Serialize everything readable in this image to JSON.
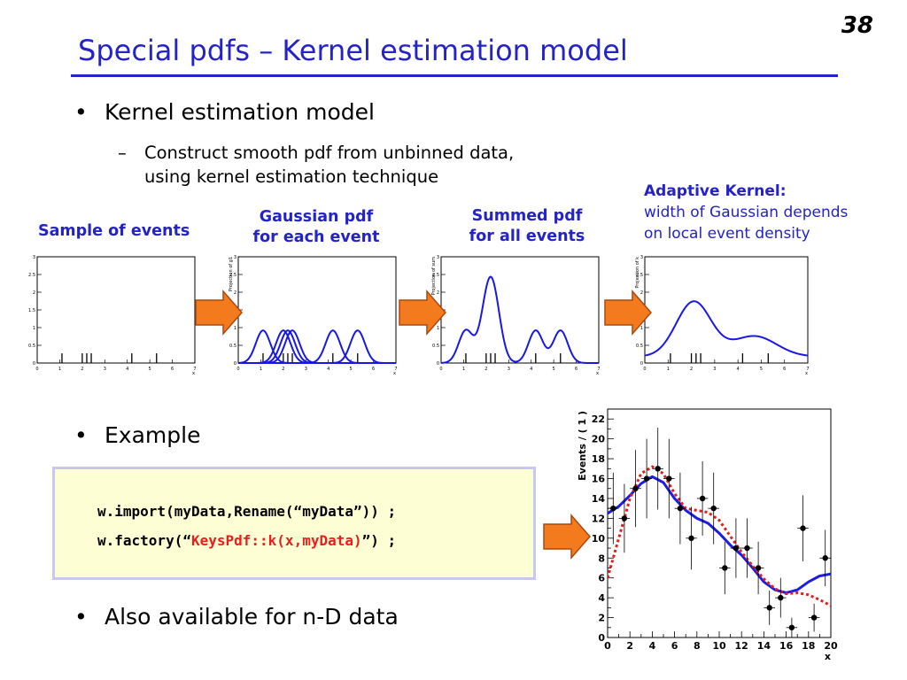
{
  "slide": {
    "page_number": "38",
    "title": "Special pdfs – Kernel estimation model"
  },
  "bullets": {
    "b1": "Kernel estimation model",
    "b1_sub_line1": "Construct smooth pdf from unbinned data,",
    "b1_sub_line2": "using kernel estimation technique",
    "b2": "Example",
    "b3": "Also available for n-D data",
    "bullet_glyph": "•",
    "dash_glyph": "–"
  },
  "panel_labels": {
    "sample": "Sample of events",
    "gaussian_line1": "Gaussian pdf",
    "gaussian_line2": "for each event",
    "summed_line1": "Summed pdf",
    "summed_line2": "for all events",
    "adaptive_heading": "Adaptive Kernel:",
    "adaptive_line1": "width of Gaussian depends",
    "adaptive_line2": "on local event density"
  },
  "mini_plots": {
    "y_ticks": [
      "0",
      "0.5",
      "1",
      "1.5",
      "2",
      "2.5",
      "3"
    ],
    "x_ticks": [
      "0",
      "1",
      "2",
      "3",
      "4",
      "5",
      "6",
      "7"
    ],
    "x_label": "x",
    "y_label_gaussian": "Projection of g1",
    "y_label_summed": "Projection of sum",
    "y_label_adaptive": "Projection of k",
    "events": [
      1.1,
      2.0,
      2.2,
      2.4,
      4.2,
      5.3
    ],
    "colors": {
      "curve": "#1818e6",
      "event_ticks": "#000000"
    }
  },
  "code": {
    "line1": "w.import(myData,Rename(“myData”)) ;",
    "line2_pre": "w.factory(“",
    "line2_red": "KeysPdf::k(x,myData)",
    "line2_post": "”) ;"
  },
  "chart_data": {
    "type": "scatter",
    "title": "",
    "xlabel": "x",
    "ylabel": "Events / ( 1 )",
    "xlim": [
      0,
      20
    ],
    "ylim": [
      0,
      23
    ],
    "x_ticks": [
      "0",
      "2",
      "4",
      "6",
      "8",
      "10",
      "12",
      "14",
      "16",
      "18",
      "20"
    ],
    "y_ticks": [
      "0",
      "2",
      "4",
      "6",
      "8",
      "10",
      "12",
      "14",
      "16",
      "18",
      "20",
      "22"
    ],
    "series": [
      {
        "points": [
          {
            "x": 0.5,
            "y": 13
          },
          {
            "x": 1.5,
            "y": 12
          },
          {
            "x": 2.5,
            "y": 15
          },
          {
            "x": 3.5,
            "y": 16
          },
          {
            "x": 4.5,
            "y": 17
          },
          {
            "x": 5.5,
            "y": 16
          },
          {
            "x": 6.5,
            "y": 13
          },
          {
            "x": 7.5,
            "y": 10
          },
          {
            "x": 8.5,
            "y": 14
          },
          {
            "x": 9.5,
            "y": 13
          },
          {
            "x": 10.5,
            "y": 7
          },
          {
            "x": 11.5,
            "y": 9
          },
          {
            "x": 12.5,
            "y": 9
          },
          {
            "x": 13.5,
            "y": 7
          },
          {
            "x": 14.5,
            "y": 3
          },
          {
            "x": 15.5,
            "y": 4
          },
          {
            "x": 16.5,
            "y": 1
          },
          {
            "x": 17.5,
            "y": 11
          },
          {
            "x": 18.5,
            "y": 2
          },
          {
            "x": 19.5,
            "y": 8
          }
        ]
      },
      {
        "style": "solid",
        "points": [
          {
            "x": 0,
            "y": 12.5
          },
          {
            "x": 1,
            "y": 13.2
          },
          {
            "x": 2,
            "y": 14.3
          },
          {
            "x": 3,
            "y": 15.5
          },
          {
            "x": 4,
            "y": 16.2
          },
          {
            "x": 5,
            "y": 15.6
          },
          {
            "x": 6,
            "y": 14.0
          },
          {
            "x": 7,
            "y": 12.8
          },
          {
            "x": 8,
            "y": 12.0
          },
          {
            "x": 9,
            "y": 11.5
          },
          {
            "x": 10,
            "y": 10.5
          },
          {
            "x": 11,
            "y": 9.3
          },
          {
            "x": 12,
            "y": 8.3
          },
          {
            "x": 13,
            "y": 7.0
          },
          {
            "x": 14,
            "y": 5.6
          },
          {
            "x": 15,
            "y": 4.8
          },
          {
            "x": 16,
            "y": 4.5
          },
          {
            "x": 17,
            "y": 4.8
          },
          {
            "x": 18,
            "y": 5.6
          },
          {
            "x": 19,
            "y": 6.2
          },
          {
            "x": 20,
            "y": 6.4
          }
        ]
      },
      {
        "style": "dotted",
        "points": [
          {
            "x": 0,
            "y": 6.0
          },
          {
            "x": 1,
            "y": 10.0
          },
          {
            "x": 2,
            "y": 14.0
          },
          {
            "x": 3,
            "y": 16.5
          },
          {
            "x": 4,
            "y": 17.2
          },
          {
            "x": 5,
            "y": 16.5
          },
          {
            "x": 6,
            "y": 14.5
          },
          {
            "x": 7,
            "y": 13.0
          },
          {
            "x": 8,
            "y": 12.8
          },
          {
            "x": 9,
            "y": 12.6
          },
          {
            "x": 10,
            "y": 11.8
          },
          {
            "x": 11,
            "y": 10.2
          },
          {
            "x": 12,
            "y": 8.6
          },
          {
            "x": 13,
            "y": 7.2
          },
          {
            "x": 14,
            "y": 5.9
          },
          {
            "x": 15,
            "y": 4.9
          },
          {
            "x": 16,
            "y": 4.4
          },
          {
            "x": 17,
            "y": 4.5
          },
          {
            "x": 18,
            "y": 4.3
          },
          {
            "x": 19,
            "y": 3.8
          },
          {
            "x": 20,
            "y": 3.2
          }
        ]
      }
    ],
    "colors": {
      "points": "#000000",
      "solid": "#1c1ce6",
      "dotted": "#e61c1c"
    }
  },
  "colors": {
    "title": "#2323c8",
    "arrow_fill": "#f47a1e",
    "arrow_stroke": "#a94a10",
    "code_bg": "#fefed4",
    "code_border": "#c8c8ec",
    "code_red": "#ee1c1c"
  }
}
